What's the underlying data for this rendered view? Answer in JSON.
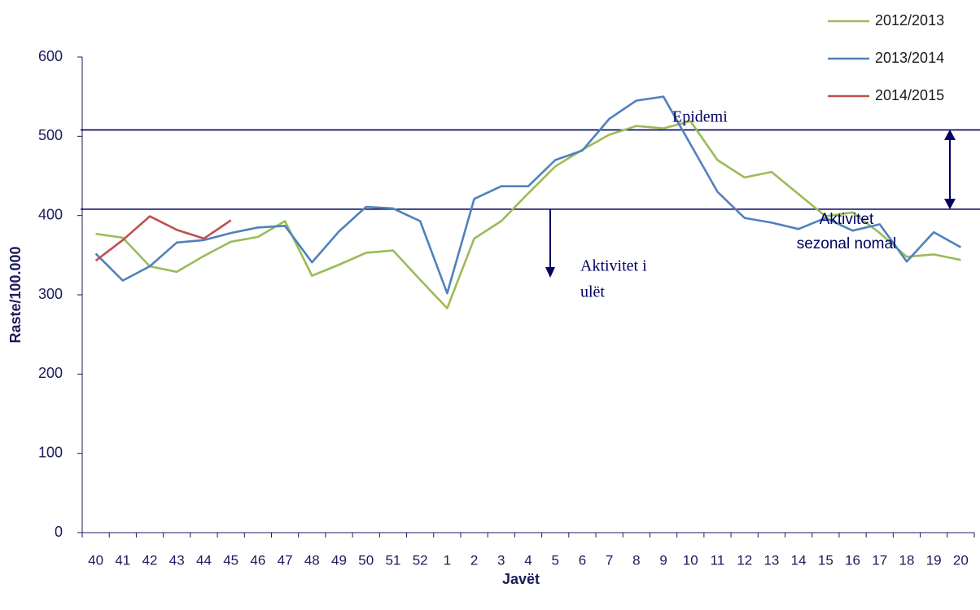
{
  "chart_data": {
    "type": "line",
    "x_label": "Javët",
    "y_label": "Raste/100.000",
    "categories": [
      "40",
      "41",
      "42",
      "43",
      "44",
      "45",
      "46",
      "47",
      "48",
      "49",
      "50",
      "51",
      "52",
      "1",
      "2",
      "3",
      "4",
      "5",
      "6",
      "7",
      "8",
      "9",
      "10",
      "11",
      "12",
      "13",
      "14",
      "15",
      "16",
      "17",
      "18",
      "19",
      "20"
    ],
    "ylim": [
      0,
      600
    ],
    "yticks": [
      0,
      100,
      200,
      300,
      400,
      500,
      600
    ],
    "grid": false,
    "legend": "top-right",
    "series": [
      {
        "name": "2012/2013",
        "color": "#9bbb59",
        "values": [
          377,
          372,
          336,
          329,
          349,
          367,
          373,
          393,
          324,
          338,
          353,
          356,
          319,
          283,
          371,
          393,
          428,
          462,
          483,
          502,
          513,
          510,
          519,
          470,
          448,
          455,
          427,
          399,
          404,
          378,
          348,
          351,
          344
        ]
      },
      {
        "name": "2013/2014",
        "color": "#4f81bd",
        "values": [
          352,
          318,
          336,
          366,
          369,
          378,
          385,
          387,
          341,
          380,
          411,
          409,
          393,
          302,
          421,
          437,
          437,
          470,
          482,
          522,
          545,
          550,
          490,
          430,
          397,
          391,
          383,
          397,
          381,
          389,
          342,
          379,
          360
        ]
      },
      {
        "name": "2014/2015",
        "color": "#c0504d",
        "values": [
          343,
          369,
          399,
          382,
          371,
          394,
          null,
          null,
          null,
          null,
          null,
          null,
          null,
          null,
          null,
          null,
          null,
          null,
          null,
          null,
          null,
          null,
          null,
          null,
          null,
          null,
          null,
          null,
          null,
          null,
          null,
          null,
          null
        ]
      }
    ],
    "thresholds": [
      408,
      508
    ],
    "threshold_color": "#000060",
    "annotations": [
      {
        "lines": [
          "Epidemi"
        ]
      },
      {
        "lines": [
          "Aktivitet",
          "sezonal nomal"
        ]
      },
      {
        "lines": [
          "Aktivitet i",
          "ulët"
        ]
      }
    ]
  }
}
